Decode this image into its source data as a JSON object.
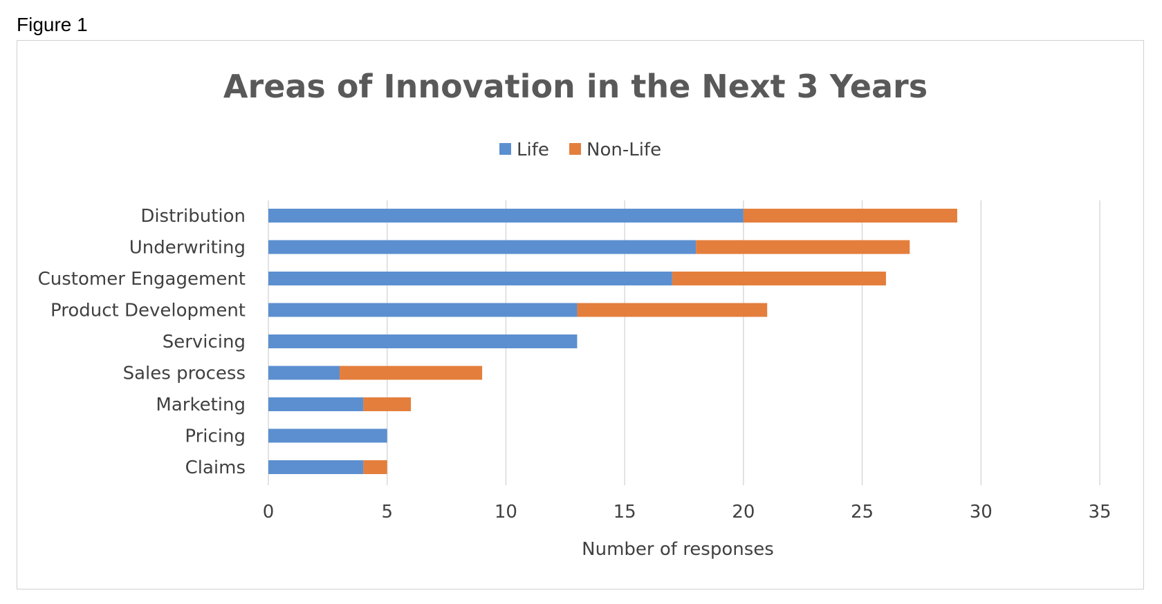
{
  "figure_label": "Figure 1",
  "colors": {
    "life": "#5b8fd0",
    "non_life": "#e47e3c"
  },
  "chart_data": {
    "type": "bar",
    "orientation": "horizontal",
    "stacked": true,
    "title": "Areas of Innovation in the Next 3 Years",
    "xlabel": "Number of responses",
    "ylabel": "",
    "xlim": [
      0,
      35
    ],
    "xticks": [
      0,
      5,
      10,
      15,
      20,
      25,
      30,
      35
    ],
    "grid": true,
    "legend_position": "top",
    "categories": [
      "Distribution",
      "Underwriting",
      "Customer Engagement",
      "Product Development",
      "Servicing",
      "Sales process",
      "Marketing",
      "Pricing",
      "Claims"
    ],
    "series": [
      {
        "name": "Life",
        "values": [
          20,
          18,
          17,
          13,
          13,
          3,
          4,
          5,
          4
        ]
      },
      {
        "name": "Non-Life",
        "values": [
          9,
          9,
          9,
          8,
          0,
          6,
          2,
          0,
          1
        ]
      }
    ]
  }
}
